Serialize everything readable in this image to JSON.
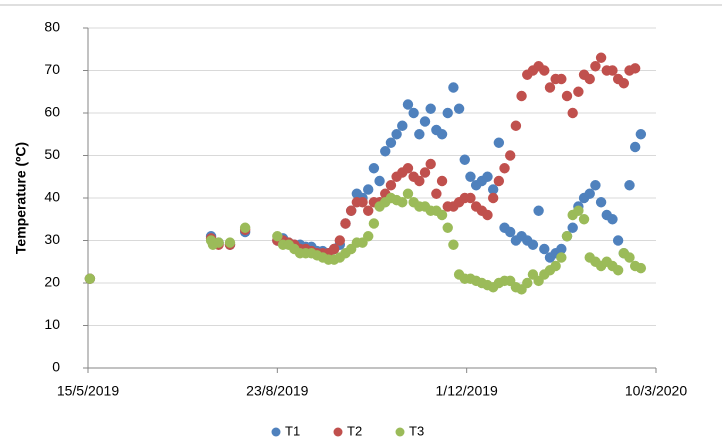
{
  "chart_data": {
    "type": "scatter",
    "y_label": "Temperature (ºC)",
    "x": [
      "2019-05-16",
      "2019-07-19",
      "2019-07-20",
      "2019-07-23",
      "2019-07-29",
      "2019-08-06",
      "2019-08-23",
      "2019-08-26",
      "2019-08-29",
      "2019-09-01",
      "2019-09-04",
      "2019-09-07",
      "2019-09-10",
      "2019-09-13",
      "2019-09-16",
      "2019-09-19",
      "2019-09-22",
      "2019-09-25",
      "2019-09-28",
      "2019-10-01",
      "2019-10-04",
      "2019-10-07",
      "2019-10-10",
      "2019-10-13",
      "2019-10-16",
      "2019-10-19",
      "2019-10-22",
      "2019-10-25",
      "2019-10-28",
      "2019-10-31",
      "2019-11-03",
      "2019-11-06",
      "2019-11-09",
      "2019-11-12",
      "2019-11-15",
      "2019-11-18",
      "2019-11-21",
      "2019-11-24",
      "2019-11-27",
      "2019-11-30",
      "2019-12-03",
      "2019-12-06",
      "2019-12-09",
      "2019-12-12",
      "2019-12-15",
      "2019-12-18",
      "2019-12-21",
      "2019-12-24",
      "2019-12-27",
      "2019-12-30",
      "2020-01-02",
      "2020-01-05",
      "2020-01-08",
      "2020-01-11",
      "2020-01-14",
      "2020-01-17",
      "2020-01-20",
      "2020-01-23",
      "2020-01-26",
      "2020-01-29",
      "2020-02-01",
      "2020-02-04",
      "2020-02-07",
      "2020-02-10",
      "2020-02-13",
      "2020-02-16",
      "2020-02-19",
      "2020-02-22",
      "2020-02-25",
      "2020-02-28",
      "2020-03-02"
    ],
    "series": [
      {
        "name": "T1",
        "color": "#4f81bd",
        "values": [
          21,
          31,
          29.5,
          29.5,
          29,
          32,
          30,
          30.5,
          29.5,
          29,
          29,
          28.5,
          28.5,
          27.5,
          27.5,
          27,
          28,
          29,
          34,
          37,
          41,
          40,
          42,
          47,
          44,
          51,
          53,
          55,
          57,
          62,
          60,
          55,
          58,
          61,
          56,
          55,
          60,
          66,
          61,
          49,
          45,
          43,
          44,
          45,
          42,
          53,
          33,
          32,
          30,
          31,
          30,
          29,
          37,
          28,
          26,
          27,
          28,
          31,
          33,
          38,
          40,
          41,
          43,
          39,
          36,
          35,
          30,
          27,
          43,
          52,
          55
        ]
      },
      {
        "name": "T2",
        "color": "#c0504d",
        "values": [
          21,
          30.5,
          29.5,
          29,
          29,
          32.5,
          30,
          30,
          29.5,
          29,
          28,
          28,
          27.5,
          27,
          27,
          27,
          28,
          30,
          34,
          37,
          39,
          39,
          37,
          39,
          39,
          41,
          43,
          45,
          46,
          47,
          45,
          44,
          46,
          48,
          41,
          44,
          38,
          38,
          39,
          40,
          40,
          38,
          37,
          36,
          40,
          44,
          47,
          50,
          57,
          64,
          69,
          70,
          71,
          70,
          66,
          68,
          68,
          64,
          60,
          65,
          69,
          68,
          71,
          73,
          70,
          70,
          68,
          67,
          70,
          70.5,
          null
        ]
      },
      {
        "name": "T3",
        "color": "#9bbb59",
        "values": [
          21,
          30,
          29,
          29.5,
          29.5,
          33,
          31,
          29,
          29,
          28,
          27,
          27,
          27,
          26.5,
          26,
          25.5,
          25.5,
          26,
          27,
          28,
          29.5,
          29.5,
          31,
          34,
          38,
          39,
          40,
          39.5,
          39,
          41,
          39,
          38,
          38,
          37,
          37,
          36,
          33,
          29,
          22,
          21,
          21,
          20.5,
          20,
          19.5,
          19,
          20,
          20.5,
          20.5,
          19,
          18.5,
          20,
          22,
          20.5,
          22,
          23,
          24,
          26,
          31,
          36,
          37,
          35,
          26,
          25,
          24,
          25,
          24,
          23,
          27,
          26,
          24,
          23.5
        ]
      }
    ],
    "xlim": [
      "2019-05-15",
      "2020-03-10"
    ],
    "xticks": [
      {
        "value": "2019-05-15",
        "label": "15/5/2019"
      },
      {
        "value": "2019-08-23",
        "label": "23/8/2019"
      },
      {
        "value": "2019-12-01",
        "label": "1/12/2019"
      },
      {
        "value": "2020-03-10",
        "label": "10/3/2020"
      }
    ],
    "ylim": [
      0,
      80
    ],
    "yticks": [
      0,
      10,
      20,
      30,
      40,
      50,
      60,
      70,
      80
    ],
    "grid": true,
    "legend": "bottom"
  }
}
